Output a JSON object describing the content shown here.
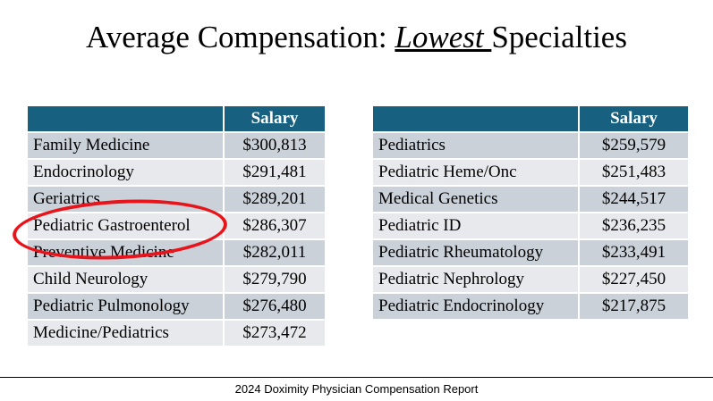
{
  "title": {
    "prefix": "Average Compensation: ",
    "emphasis": "Lowest ",
    "suffix": "Specialties"
  },
  "left_table": {
    "headers": [
      "",
      "Salary"
    ],
    "rows": [
      [
        "Family Medicine",
        "$300,813"
      ],
      [
        "Endocrinology",
        "$291,481"
      ],
      [
        "Geriatrics",
        "$289,201"
      ],
      [
        "Pediatric Gastroenterol",
        "$286,307"
      ],
      [
        "Preventive Medicine",
        "$282,011"
      ],
      [
        "Child Neurology",
        "$279,790"
      ],
      [
        "Pediatric Pulmonology",
        "$276,480"
      ],
      [
        "Medicine/Pediatrics",
        "$273,472"
      ]
    ]
  },
  "right_table": {
    "headers": [
      "",
      "Salary"
    ],
    "rows": [
      [
        "Pediatrics",
        "$259,579"
      ],
      [
        "Pediatric Heme/Onc",
        "$251,483"
      ],
      [
        "Medical Genetics",
        "$244,517"
      ],
      [
        "Pediatric ID",
        "$236,235"
      ],
      [
        "Pediatric Rheumatology",
        "$233,491"
      ],
      [
        "Pediatric Nephrology",
        "$227,450"
      ],
      [
        "Pediatric Endocrinology",
        "$217,875"
      ]
    ]
  },
  "footer": "2024 Doximity Physician Compensation Report",
  "colors": {
    "header": "#17607f",
    "row_dark": "#cbd1d9",
    "row_light": "#e8e9ed",
    "highlight": "#e8141b"
  }
}
